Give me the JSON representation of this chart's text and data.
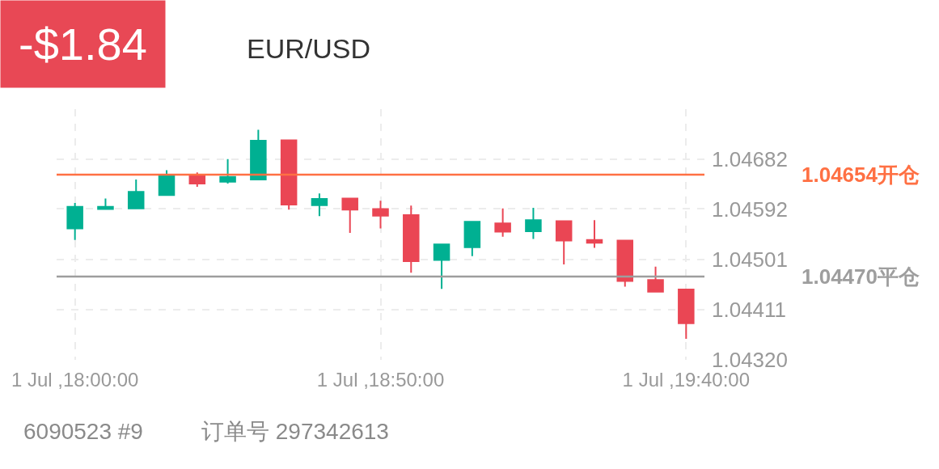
{
  "chart_data": {
    "type": "candlestick",
    "title": "-$1.84",
    "subtitle": "EUR/USD",
    "annotations": [
      "6090523 #9",
      "订单号 297342613"
    ],
    "x": [
      "--07-01T18:00",
      "--07-01T18:05",
      "--07-01T18:10",
      "--07-01T18:15",
      "--07-01T18:20",
      "--07-01T18:25",
      "--07-01T18:30",
      "--07-01T18:35",
      "--07-01T18:40",
      "--07-01T18:45",
      "--07-01T18:50",
      "--07-01T18:55",
      "--07-01T19:00",
      "--07-01T19:05",
      "--07-01T19:10",
      "--07-01T19:15",
      "--07-01T19:20",
      "--07-01T19:25",
      "--07-01T19:30",
      "--07-01T19:35",
      "--07-01T19:40"
    ],
    "ohlc": [
      [
        1.04557,
        1.04603,
        1.04536,
        1.04596
      ],
      [
        1.04592,
        1.04611,
        1.04592,
        1.04596
      ],
      [
        1.04593,
        1.04645,
        1.04593,
        1.04623
      ],
      [
        1.04617,
        1.04662,
        1.04616,
        1.04653
      ],
      [
        1.04653,
        1.04658,
        1.04632,
        1.04638
      ],
      [
        1.04641,
        1.04682,
        1.04638,
        1.0465
      ],
      [
        1.04645,
        1.04735,
        1.04645,
        1.04715
      ],
      [
        1.04716,
        1.04716,
        1.04591,
        1.046
      ],
      [
        1.04599,
        1.0462,
        1.04579,
        1.0461
      ],
      [
        1.04611,
        1.04611,
        1.04549,
        1.04591
      ],
      [
        1.04592,
        1.04607,
        1.04557,
        1.0458
      ],
      [
        1.04581,
        1.04598,
        1.04477,
        1.04498
      ],
      [
        1.045,
        1.04528,
        1.04448,
        1.04528
      ],
      [
        1.04523,
        1.04569,
        1.04507,
        1.04569
      ],
      [
        1.04566,
        1.04593,
        1.04542,
        1.04551
      ],
      [
        1.04552,
        1.04594,
        1.04538,
        1.04572
      ],
      [
        1.0457,
        1.0457,
        1.04492,
        1.04535
      ],
      [
        1.04536,
        1.04572,
        1.04522,
        1.04531
      ],
      [
        1.04535,
        1.04535,
        1.04452,
        1.04462
      ],
      [
        1.04464,
        1.04488,
        1.04442,
        1.04443
      ],
      [
        1.04447,
        1.04447,
        1.04358,
        1.04386
      ]
    ],
    "colors": [
      "#00b092",
      "#00b092",
      "#00b092",
      "#00b092",
      "#ea4654",
      "#00b092",
      "#00b092",
      "#ea4654",
      "#00b092",
      "#ea4654",
      "#ea4654",
      "#ea4654",
      "#00b092",
      "#00b092",
      "#ea4654",
      "#00b092",
      "#ea4654",
      "#ea4654",
      "#ea4654",
      "#ea4654",
      "#ea4654"
    ],
    "xlim": [
      "--07-01T17:57",
      "--07-01T19:43"
    ],
    "xticks": [
      {
        "value": "--07-01T18:00",
        "label": "1 Jul ,18:00:00"
      },
      {
        "value": "--07-01T18:50",
        "label": "1 Jul ,18:50:00"
      },
      {
        "value": "--07-01T19:40",
        "label": "1 Jul ,19:40:00"
      }
    ],
    "ylim": [
      1.0432,
      1.04772
    ],
    "yticks": [
      {
        "value": 1.0432,
        "label": "1.04320"
      },
      1.04411,
      1.04501,
      1.04592,
      1.04682
    ],
    "ref_lines": [
      {
        "axis": "y",
        "value": 1.04654,
        "label": "1.04654开仓",
        "color": "#ff7043"
      },
      {
        "axis": "y",
        "value": 1.0447,
        "label": "1.04470平仓",
        "color": "#9e9e9e"
      }
    ],
    "grid": true
  }
}
